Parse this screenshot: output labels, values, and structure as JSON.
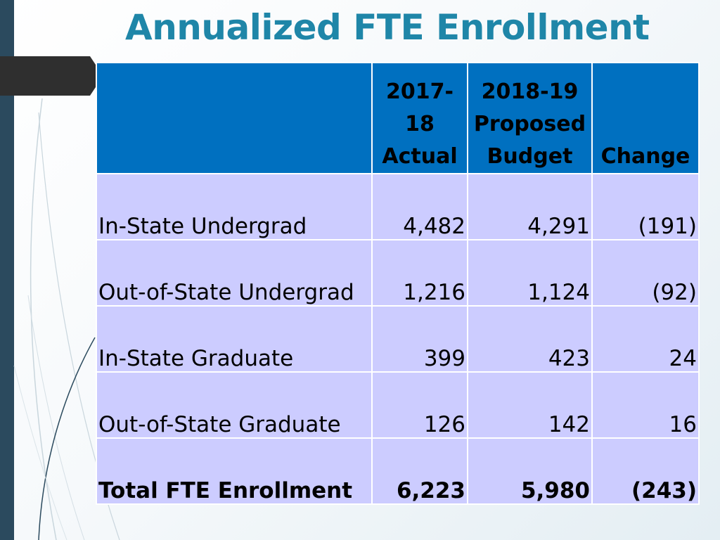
{
  "title": "Annualized FTE Enrollment",
  "table": {
    "headers": {
      "label": "",
      "actual_1": "2017-18",
      "actual_2": "Actual",
      "proposed_1": "2018-19",
      "proposed_2": "Proposed",
      "proposed_3": "Budget",
      "change": "Change"
    },
    "rows": [
      {
        "label": "In-State Undergrad",
        "actual": "4,482",
        "proposed": "4,291",
        "change": "(191)"
      },
      {
        "label": "Out-of-State Undergrad",
        "actual": "1,216",
        "proposed": "1,124",
        "change": "(92)"
      },
      {
        "label": "In-State Graduate",
        "actual": "399",
        "proposed": "423",
        "change": "24"
      },
      {
        "label": "Out-of-State Graduate",
        "actual": "126",
        "proposed": "142",
        "change": "16"
      },
      {
        "label": "Total FTE Enrollment",
        "actual": "6,223",
        "proposed": "5,980",
        "change": "(243)"
      }
    ]
  },
  "colors": {
    "title": "#1f86a8",
    "header_bg": "#0070c0",
    "row_bg": "#ccccff",
    "sidebar": "#2b4a5e"
  }
}
